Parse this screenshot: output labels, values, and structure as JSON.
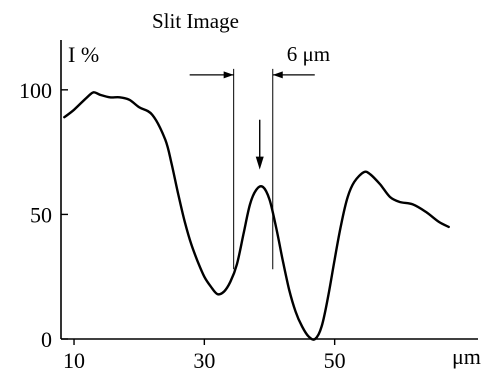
{
  "chart_data": {
    "type": "line",
    "title": "Slit Image",
    "xlabel": "μm",
    "ylabel": "I %",
    "xlim": [
      8,
      72
    ],
    "ylim": [
      0,
      120
    ],
    "x_ticks": [
      10,
      30,
      50
    ],
    "y_ticks": [
      0,
      50,
      100
    ],
    "grid": false,
    "legend": "none",
    "series": [
      {
        "color": "#000000",
        "points": [
          [
            8.5,
            89
          ],
          [
            10,
            92
          ],
          [
            12,
            97
          ],
          [
            13,
            99
          ],
          [
            14,
            98
          ],
          [
            15.5,
            97
          ],
          [
            17,
            97
          ],
          [
            18.5,
            96
          ],
          [
            20,
            93
          ],
          [
            22,
            90
          ],
          [
            24,
            80
          ],
          [
            25,
            70
          ],
          [
            26,
            58
          ],
          [
            27,
            47
          ],
          [
            28,
            38
          ],
          [
            29,
            31
          ],
          [
            30,
            25
          ],
          [
            31,
            21
          ],
          [
            32,
            18
          ],
          [
            33,
            19
          ],
          [
            34,
            23
          ],
          [
            35,
            30
          ],
          [
            36,
            42
          ],
          [
            37,
            54
          ],
          [
            38,
            60
          ],
          [
            39,
            61
          ],
          [
            40,
            56
          ],
          [
            41,
            45
          ],
          [
            42,
            32
          ],
          [
            43,
            20
          ],
          [
            44,
            11
          ],
          [
            45,
            5
          ],
          [
            46,
            1
          ],
          [
            47,
            0
          ],
          [
            48,
            5
          ],
          [
            49,
            17
          ],
          [
            50,
            32
          ],
          [
            51,
            46
          ],
          [
            52,
            57
          ],
          [
            53,
            63
          ],
          [
            54.5,
            67
          ],
          [
            55.5,
            66
          ],
          [
            57,
            62
          ],
          [
            58.5,
            57
          ],
          [
            60,
            55
          ],
          [
            62,
            54
          ],
          [
            64,
            51
          ],
          [
            66,
            47
          ],
          [
            67.5,
            45
          ]
        ]
      }
    ],
    "annotations": [
      {
        "type": "width-marker",
        "label": "6 μm",
        "x_start": 34.5,
        "x_end": 40.5,
        "y": 106
      },
      {
        "type": "arrow",
        "x": 38.5,
        "y_from": 88,
        "y_to": 68
      }
    ]
  }
}
